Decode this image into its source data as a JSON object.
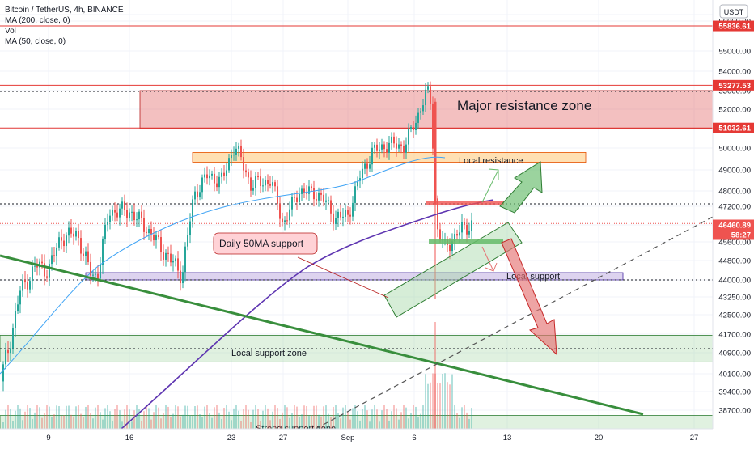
{
  "legend": {
    "title": "Bitcoin / TetherUS, 4h, BINANCE",
    "ma200": "MA (200, close, 0)",
    "vol": "Vol",
    "ma50": "MA (50, close, 0)"
  },
  "currency": "USDT",
  "chart_data": {
    "type": "candlestick",
    "symbol": "Bitcoin / TetherUS",
    "interval": "4h",
    "exchange": "BINANCE",
    "ylim": [
      37800,
      56500
    ],
    "x_ticks": [
      "9",
      "16",
      "23",
      "27",
      "Sep",
      "6",
      "13",
      "20",
      "27"
    ],
    "y_ticks": [
      "56500.00",
      "56000.00",
      "55000.00",
      "54000.00",
      "53000.00",
      "52000.00",
      "51000.00",
      "50000.00",
      "49000.00",
      "48000.00",
      "47200.00",
      "46400.00",
      "45600.00",
      "44800.00",
      "44000.00",
      "43250.00",
      "42500.00",
      "41700.00",
      "40900.00",
      "40100.00",
      "39400.00",
      "38700.00"
    ],
    "price_labels": [
      {
        "value": "55836.61",
        "color": "#e53935"
      },
      {
        "value": "53277.53",
        "color": "#e53935"
      },
      {
        "value": "51032.61",
        "color": "#e53935"
      },
      {
        "value": "46460.89",
        "color": "#ef5350"
      },
      {
        "value": "58:27",
        "color": "#ef5350"
      }
    ],
    "horizontal_levels": [
      55836.61,
      53277.53,
      51032.61
    ],
    "current_price": 46460.89,
    "zones": [
      {
        "label": "Major resistance zone",
        "low": 51000,
        "high": 53000,
        "color": "#e57373"
      },
      {
        "label": "Local resistance",
        "low": 49350,
        "high": 49800,
        "color": "#ffcc80"
      },
      {
        "label": "Local support",
        "low": 44000,
        "high": 44300,
        "color": "#b39ddb"
      },
      {
        "label": "Local support zone",
        "low": 40550,
        "high": 41650,
        "color": "#a5d6a7"
      },
      {
        "label": "Strong support zone",
        "low": 37800,
        "high": 38500,
        "color": "#a5d6a7"
      }
    ],
    "annotations": [
      "Daily 50MA support"
    ],
    "series": [
      {
        "name": "MA (200, close, 0)",
        "color": "#5e35b1"
      },
      {
        "name": "MA (50, close, 0)",
        "color": "#42a5f5"
      }
    ],
    "colors": {
      "up": "#26a69a",
      "down": "#ef5350"
    }
  }
}
